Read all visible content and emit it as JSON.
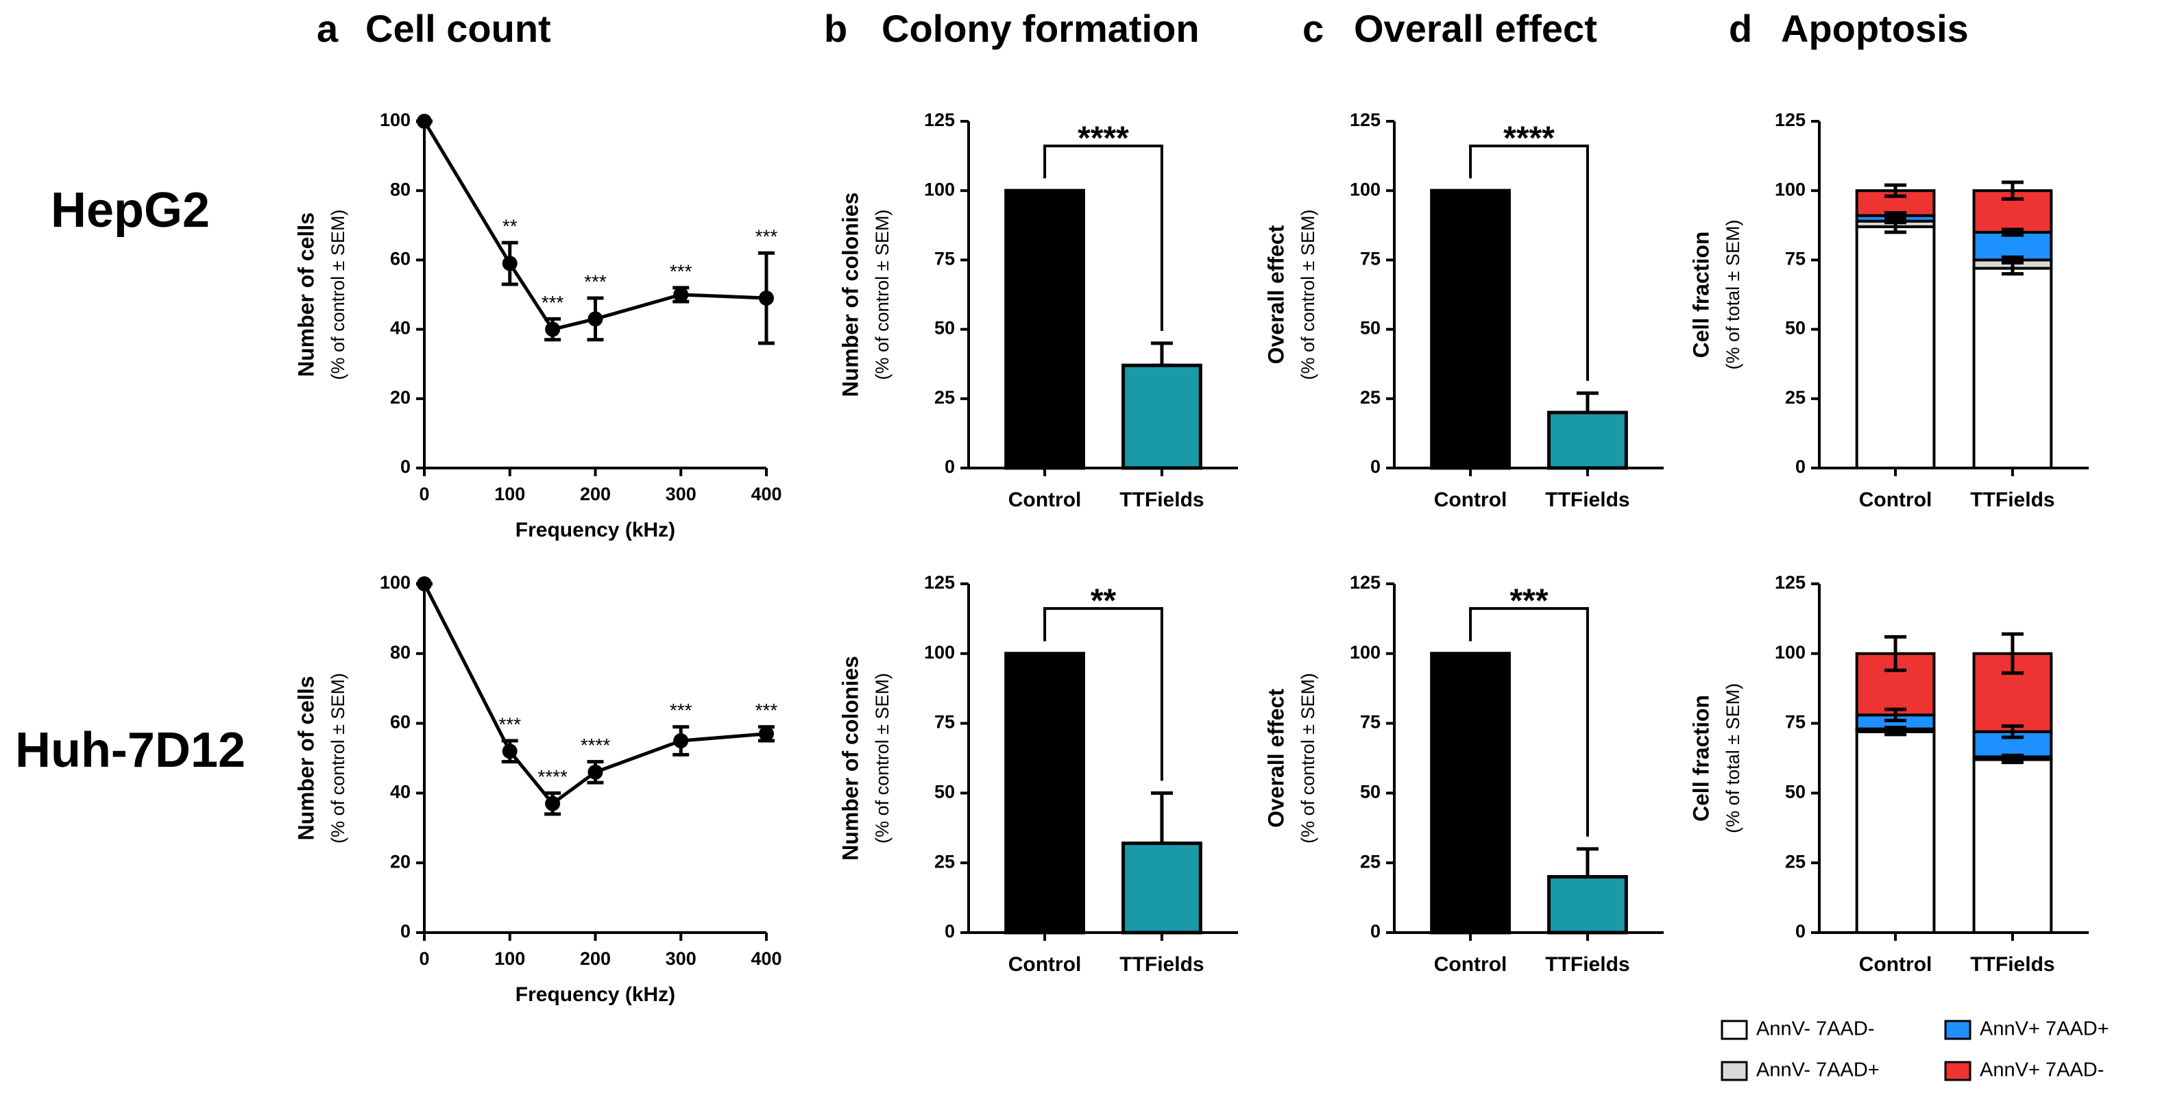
{
  "panels": [
    {
      "label": "a",
      "title": "Cell count"
    },
    {
      "label": "b",
      "title": "Colony formation"
    },
    {
      "label": "c",
      "title": "Overall effect"
    },
    {
      "label": "d",
      "title": "Apoptosis"
    }
  ],
  "rows": [
    "HepG2",
    "Huh-7D12"
  ],
  "chart_data": [
    {
      "type": "line",
      "ylabel": "Number of cells",
      "ylabel_sub": "(% of control ± SEM)",
      "xlabel": "Frequency (kHz)",
      "color": "#000000",
      "x": [
        0,
        100,
        150,
        200,
        300,
        400
      ],
      "values": [
        100,
        59,
        40,
        43,
        50,
        49
      ],
      "errors": [
        0,
        6,
        3,
        6,
        2,
        13
      ],
      "stars": [
        null,
        "**",
        "***",
        "***",
        "***",
        "***"
      ],
      "xlim": [
        0,
        400
      ],
      "xticks": [
        0,
        100,
        200,
        300,
        400
      ],
      "ylim": [
        0,
        100
      ],
      "yticks": [
        0,
        20,
        40,
        60,
        80,
        100
      ]
    },
    {
      "type": "bar",
      "ylabel": "Number of colonies",
      "ylabel_sub": "(% of control ± SEM)",
      "categories": [
        "Control",
        "TTFields"
      ],
      "values": [
        100,
        37
      ],
      "errors": [
        0,
        8
      ],
      "colors": [
        "#000000",
        "#1a9aa8"
      ],
      "significance": "****",
      "ylim": [
        0,
        125
      ],
      "yticks": [
        0,
        25,
        50,
        75,
        100,
        125
      ]
    },
    {
      "type": "bar",
      "ylabel": "Overall effect",
      "ylabel_sub": "(% of control ± SEM)",
      "categories": [
        "Control",
        "TTFields"
      ],
      "values": [
        100,
        20
      ],
      "errors": [
        0,
        7
      ],
      "colors": [
        "#000000",
        "#1a9aa8"
      ],
      "significance": "****",
      "ylim": [
        0,
        125
      ],
      "yticks": [
        0,
        25,
        50,
        75,
        100,
        125
      ]
    },
    {
      "type": "stacked",
      "ylabel": "Cell fraction",
      "ylabel_sub": "(% of total ± SEM)",
      "categories": [
        "Control",
        "TTFields"
      ],
      "series": [
        {
          "color": "#ffffff",
          "values": [
            87,
            72
          ],
          "errors": [
            2,
            2
          ]
        },
        {
          "color": "#d9d9d9",
          "values": [
            2,
            3
          ],
          "errors": [
            0.5,
            1
          ]
        },
        {
          "color": "#1e90ff",
          "values": [
            2,
            10
          ],
          "errors": [
            1,
            1
          ]
        },
        {
          "color": "#ee3333",
          "values": [
            9,
            15
          ],
          "errors": [
            2,
            3
          ]
        }
      ],
      "ylim": [
        0,
        125
      ],
      "yticks": [
        0,
        25,
        50,
        75,
        100,
        125
      ]
    },
    {
      "type": "line",
      "ylabel": "Number of cells",
      "ylabel_sub": "(% of control ± SEM)",
      "xlabel": "Frequency (kHz)",
      "color": "#000000",
      "x": [
        0,
        100,
        150,
        200,
        300,
        400
      ],
      "values": [
        100,
        52,
        37,
        46,
        55,
        57
      ],
      "errors": [
        0,
        3,
        3,
        3,
        4,
        2
      ],
      "stars": [
        null,
        "***",
        "****",
        "****",
        "***",
        "***"
      ],
      "xlim": [
        0,
        400
      ],
      "xticks": [
        0,
        100,
        200,
        300,
        400
      ],
      "ylim": [
        0,
        100
      ],
      "yticks": [
        0,
        20,
        40,
        60,
        80,
        100
      ]
    },
    {
      "type": "bar",
      "ylabel": "Number of colonies",
      "ylabel_sub": "(% of control ± SEM)",
      "categories": [
        "Control",
        "TTFields"
      ],
      "values": [
        100,
        32
      ],
      "errors": [
        0,
        18
      ],
      "colors": [
        "#000000",
        "#1a9aa8"
      ],
      "significance": "**",
      "ylim": [
        0,
        125
      ],
      "yticks": [
        0,
        25,
        50,
        75,
        100,
        125
      ]
    },
    {
      "type": "bar",
      "ylabel": "Overall effect",
      "ylabel_sub": "(% of control ± SEM)",
      "categories": [
        "Control",
        "TTFields"
      ],
      "values": [
        100,
        20
      ],
      "errors": [
        0,
        10
      ],
      "colors": [
        "#000000",
        "#1a9aa8"
      ],
      "significance": "***",
      "ylim": [
        0,
        125
      ],
      "yticks": [
        0,
        25,
        50,
        75,
        100,
        125
      ]
    },
    {
      "type": "stacked",
      "ylabel": "Cell fraction",
      "ylabel_sub": "(% of total ± SEM)",
      "categories": [
        "Control",
        "TTFields"
      ],
      "series": [
        {
          "name": "AnnV- 7AAD-",
          "color": "#ffffff",
          "values": [
            72,
            62
          ],
          "errors": [
            1,
            1
          ]
        },
        {
          "name": "AnnV- 7AAD+",
          "color": "#d9d9d9",
          "values": [
            1,
            1
          ],
          "errors": [
            0.5,
            0.5
          ]
        },
        {
          "name": "AnnV+ 7AAD+",
          "color": "#1e90ff",
          "values": [
            5,
            9
          ],
          "errors": [
            2,
            2
          ]
        },
        {
          "name": "AnnV+ 7AAD-",
          "color": "#ee3333",
          "values": [
            22,
            28
          ],
          "errors": [
            6,
            7
          ]
        }
      ],
      "ylim": [
        0,
        125
      ],
      "yticks": [
        0,
        25,
        50,
        75,
        100,
        125
      ]
    }
  ]
}
